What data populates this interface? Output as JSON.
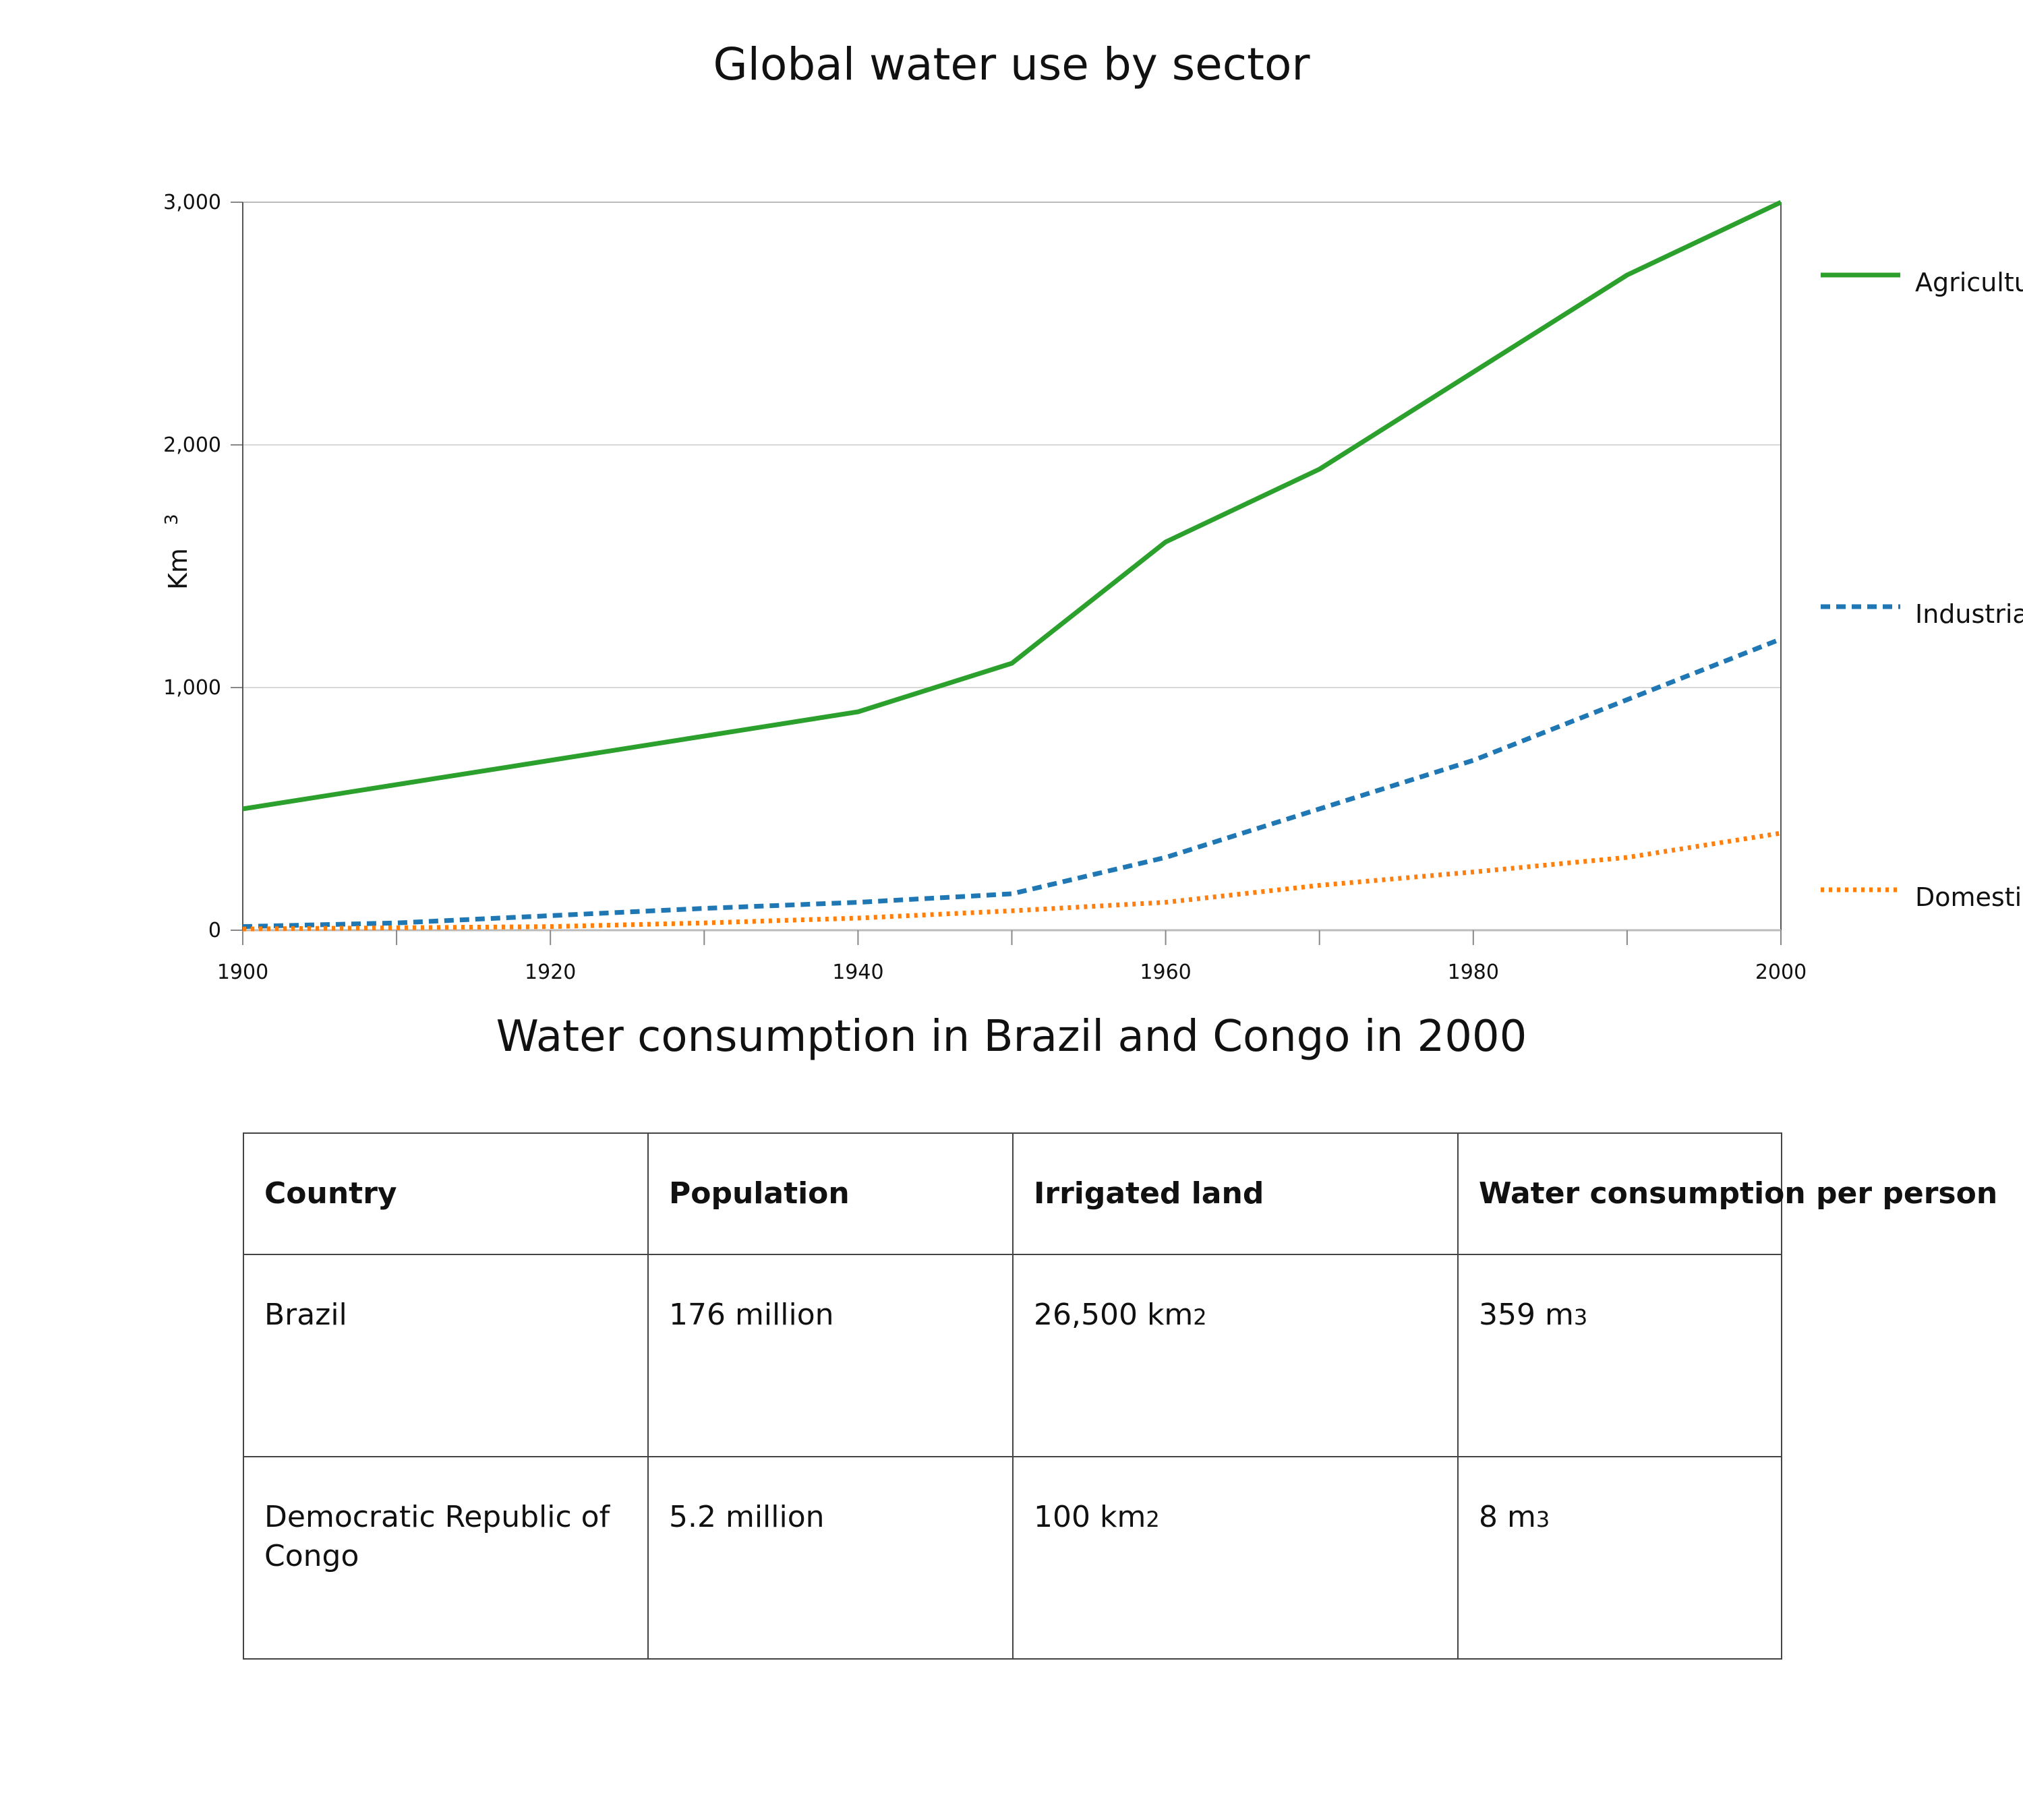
{
  "chart_data": [
    {
      "type": "line",
      "title": "Global water use by sector",
      "ylabel": "Km",
      "ylabel_superscript": "3",
      "xlabel": "",
      "x": [
        1900,
        1910,
        1920,
        1930,
        1940,
        1950,
        1960,
        1970,
        1980,
        1990,
        2000
      ],
      "x_ticks": [
        1900,
        1910,
        1920,
        1930,
        1940,
        1950,
        1960,
        1970,
        1980,
        1990,
        2000
      ],
      "x_tick_labels": [
        "1900",
        "",
        "1920",
        "",
        "1940",
        "",
        "1960",
        "",
        "1980",
        "",
        "2000"
      ],
      "xlim": [
        1900,
        2000
      ],
      "ylim": [
        0,
        3000
      ],
      "y_ticks": [
        0,
        1000,
        2000,
        3000
      ],
      "y_tick_labels": [
        "0",
        "1,000",
        "2,000",
        "3,000"
      ],
      "grid": true,
      "legend_position": "right",
      "series": [
        {
          "name": "Agriculture",
          "color": "#2ca02c",
          "style": "solid",
          "values": [
            500,
            600,
            700,
            800,
            900,
            1100,
            1600,
            1900,
            2300,
            2700,
            3000
          ]
        },
        {
          "name": "Industrial",
          "color": "#1f77b4",
          "style": "dashed",
          "values": [
            15,
            30,
            60,
            90,
            115,
            150,
            300,
            500,
            700,
            950,
            1200
          ]
        },
        {
          "name": "Domestic",
          "color": "#ff7f0e",
          "style": "dotted",
          "values": [
            5,
            10,
            15,
            30,
            50,
            80,
            115,
            185,
            240,
            300,
            400
          ]
        }
      ]
    },
    {
      "type": "table",
      "title": "Water consumption in Brazil and Congo in 2000",
      "columns": [
        "Country",
        "Population",
        "Irrigated land",
        "Water consumption per person"
      ],
      "rows": [
        {
          "country": "Brazil",
          "population": "176 million",
          "irrigated_land": "26,500 km",
          "irrigated_land_sup": "2",
          "water_per_person": "359 m",
          "water_per_person_sup": "3"
        },
        {
          "country": "Democratic Republic of Congo",
          "population": "5.2 million",
          "irrigated_land": "100 km",
          "irrigated_land_sup": "2",
          "water_per_person": "8 m",
          "water_per_person_sup": "3"
        }
      ]
    }
  ]
}
